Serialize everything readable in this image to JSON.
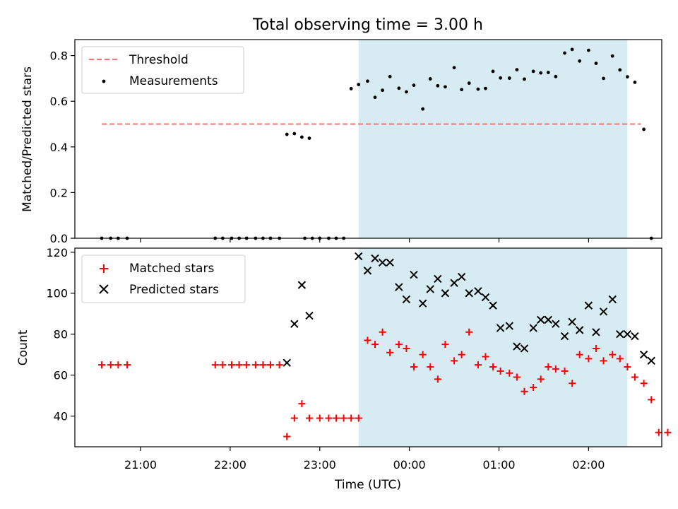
{
  "figure": {
    "title": "Total observing time = 3.00 h",
    "xlabel": "Time (UTC)",
    "xticks": [
      {
        "t": 60.0,
        "label": "21:00"
      },
      {
        "t": 120.0,
        "label": "22:00"
      },
      {
        "t": 180.0,
        "label": "23:00"
      },
      {
        "t": 240.0,
        "label": "00:00"
      },
      {
        "t": 300.0,
        "label": "01:00"
      },
      {
        "t": 360.0,
        "label": "02:00"
      }
    ],
    "xlim": [
      16.0,
      409.0
    ],
    "highlight_span": [
      206.0,
      386.0
    ],
    "highlight_color": "#add8e6",
    "time_unit": "minutes after 20:00 UTC"
  },
  "chart_data": [
    {
      "type": "scatter",
      "ylabel": "Matched/Predicted stars",
      "ylim": [
        0,
        0.87
      ],
      "yticks": [
        0.0,
        0.2,
        0.4,
        0.6,
        0.8
      ],
      "legend": {
        "position": "top-left",
        "entries": [
          "Threshold",
          "Measurements"
        ]
      },
      "threshold": {
        "name": "Threshold",
        "y": 0.5,
        "x": [
          34.0,
          395.0
        ],
        "color": "#ff7070"
      },
      "series": [
        {
          "name": "Measurements",
          "color": "#000000",
          "points": [
            [
              34,
              0
            ],
            [
              40,
              0
            ],
            [
              45,
              0
            ],
            [
              51,
              0
            ],
            [
              110,
              0
            ],
            [
              115,
              0
            ],
            [
              121,
              0
            ],
            [
              126,
              0
            ],
            [
              131,
              0
            ],
            [
              137,
              0
            ],
            [
              142,
              0
            ],
            [
              147,
              0
            ],
            [
              153,
              0
            ],
            [
              170,
              0
            ],
            [
              175,
              0
            ],
            [
              180,
              0
            ],
            [
              186,
              0
            ],
            [
              191,
              0
            ],
            [
              196,
              0
            ],
            [
              158,
              0.455
            ],
            [
              163,
              0.458
            ],
            [
              168,
              0.443
            ],
            [
              173,
              0.438
            ],
            [
              201,
              0.655
            ],
            [
              206,
              0.673
            ],
            [
              212,
              0.688
            ],
            [
              217,
              0.617
            ],
            [
              222,
              0.648
            ],
            [
              227,
              0.708
            ],
            [
              233,
              0.657
            ],
            [
              238,
              0.641
            ],
            [
              243,
              0.67
            ],
            [
              249,
              0.566
            ],
            [
              254,
              0.698
            ],
            [
              259,
              0.668
            ],
            [
              264,
              0.663
            ],
            [
              270,
              0.747
            ],
            [
              275,
              0.651
            ],
            [
              280,
              0.679
            ],
            [
              286,
              0.653
            ],
            [
              291,
              0.656
            ],
            [
              296,
              0.731
            ],
            [
              301,
              0.702
            ],
            [
              307,
              0.701
            ],
            [
              312,
              0.738
            ],
            [
              317,
              0.697
            ],
            [
              323,
              0.731
            ],
            [
              328,
              0.724
            ],
            [
              333,
              0.726
            ],
            [
              338,
              0.708
            ],
            [
              344,
              0.811
            ],
            [
              349,
              0.827
            ],
            [
              354,
              0.776
            ],
            [
              360,
              0.823
            ],
            [
              365,
              0.766
            ],
            [
              370,
              0.7
            ],
            [
              376,
              0.798
            ],
            [
              381,
              0.737
            ],
            [
              386,
              0.707
            ],
            [
              391,
              0.683
            ],
            [
              397,
              0.477
            ],
            [
              402,
              0
            ]
          ]
        }
      ]
    },
    {
      "type": "scatter",
      "ylabel": "Count",
      "ylim": [
        25,
        122
      ],
      "yticks": [
        40,
        60,
        80,
        100,
        120
      ],
      "legend": {
        "position": "top-left",
        "entries": [
          "Matched stars",
          "Predicted stars"
        ]
      },
      "series": [
        {
          "name": "Matched stars",
          "marker": "plus",
          "color": "#ff0000",
          "points": [
            [
              34,
              65
            ],
            [
              40,
              65
            ],
            [
              45,
              65
            ],
            [
              51,
              65
            ],
            [
              110,
              65
            ],
            [
              115,
              65
            ],
            [
              121,
              65
            ],
            [
              126,
              65
            ],
            [
              131,
              65
            ],
            [
              137,
              65
            ],
            [
              142,
              65
            ],
            [
              147,
              65
            ],
            [
              153,
              65
            ],
            [
              158,
              30
            ],
            [
              163,
              39
            ],
            [
              168,
              46
            ],
            [
              173,
              39
            ],
            [
              180,
              39
            ],
            [
              186,
              39
            ],
            [
              191,
              39
            ],
            [
              196,
              39
            ],
            [
              201,
              39
            ],
            [
              206,
              39
            ],
            [
              212,
              77
            ],
            [
              217,
              75
            ],
            [
              222,
              81
            ],
            [
              227,
              71
            ],
            [
              233,
              75
            ],
            [
              238,
              73
            ],
            [
              243,
              64
            ],
            [
              249,
              70
            ],
            [
              254,
              64
            ],
            [
              259,
              58
            ],
            [
              264,
              75
            ],
            [
              270,
              67
            ],
            [
              275,
              70
            ],
            [
              280,
              81
            ],
            [
              286,
              65
            ],
            [
              291,
              69
            ],
            [
              296,
              64
            ],
            [
              301,
              62
            ],
            [
              307,
              61
            ],
            [
              312,
              59
            ],
            [
              317,
              52
            ],
            [
              323,
              54
            ],
            [
              328,
              58
            ],
            [
              333,
              64
            ],
            [
              338,
              63
            ],
            [
              344,
              62
            ],
            [
              349,
              56
            ],
            [
              354,
              70
            ],
            [
              360,
              68
            ],
            [
              365,
              73
            ],
            [
              370,
              67
            ],
            [
              376,
              70
            ],
            [
              381,
              68
            ],
            [
              386,
              64
            ],
            [
              391,
              59
            ],
            [
              397,
              56
            ],
            [
              402,
              48
            ],
            [
              407,
              32
            ],
            [
              413,
              32
            ]
          ]
        },
        {
          "name": "Predicted stars",
          "marker": "x",
          "color": "#000000",
          "points": [
            [
              158,
              66
            ],
            [
              163,
              85
            ],
            [
              168,
              104
            ],
            [
              173,
              89
            ],
            [
              206,
              118
            ],
            [
              212,
              111
            ],
            [
              217,
              117
            ],
            [
              222,
              115
            ],
            [
              227,
              115
            ],
            [
              233,
              103
            ],
            [
              238,
              97
            ],
            [
              243,
              109
            ],
            [
              249,
              95
            ],
            [
              254,
              102
            ],
            [
              259,
              107
            ],
            [
              264,
              100
            ],
            [
              270,
              105
            ],
            [
              275,
              108
            ],
            [
              280,
              100
            ],
            [
              286,
              101
            ],
            [
              291,
              98
            ],
            [
              296,
              94
            ],
            [
              301,
              83
            ],
            [
              307,
              84
            ],
            [
              312,
              74
            ],
            [
              317,
              73
            ],
            [
              323,
              83
            ],
            [
              328,
              87
            ],
            [
              333,
              87
            ],
            [
              338,
              85
            ],
            [
              344,
              79
            ],
            [
              349,
              86
            ],
            [
              354,
              82
            ],
            [
              360,
              94
            ],
            [
              365,
              81
            ],
            [
              370,
              91
            ],
            [
              376,
              97
            ],
            [
              381,
              80
            ],
            [
              386,
              80
            ],
            [
              391,
              79
            ],
            [
              397,
              70
            ],
            [
              402,
              67
            ]
          ]
        }
      ]
    }
  ]
}
